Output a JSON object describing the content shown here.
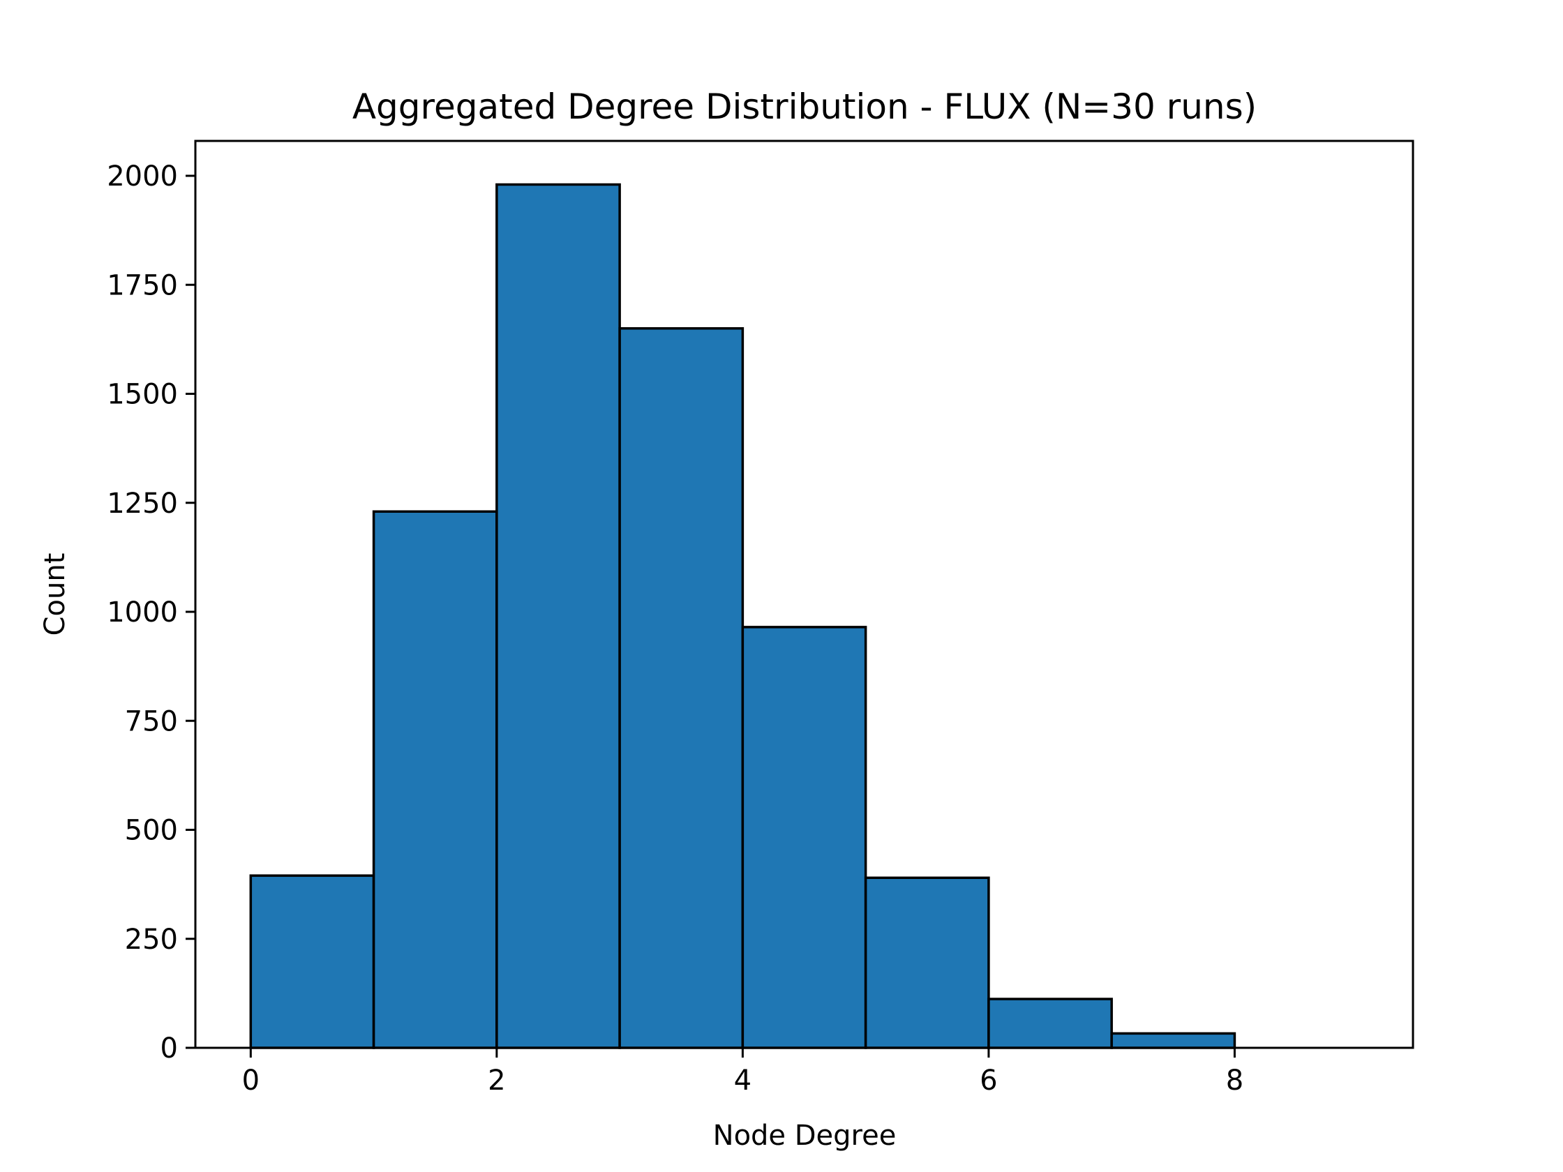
{
  "chart_data": {
    "type": "bar",
    "title": "Aggregated Degree Distribution - FLUX (N=30 runs)",
    "xlabel": "Node Degree",
    "ylabel": "Count",
    "bins": [
      {
        "x0": 0,
        "x1": 1,
        "count": 395
      },
      {
        "x0": 1,
        "x1": 2,
        "count": 1230
      },
      {
        "x0": 2,
        "x1": 3,
        "count": 1980
      },
      {
        "x0": 3,
        "x1": 4,
        "count": 1650
      },
      {
        "x0": 4,
        "x1": 5,
        "count": 965
      },
      {
        "x0": 5,
        "x1": 6,
        "count": 390
      },
      {
        "x0": 6,
        "x1": 7,
        "count": 112
      },
      {
        "x0": 7,
        "x1": 8,
        "count": 33
      }
    ],
    "xlim": [
      -0.45,
      9.45
    ],
    "ylim": [
      0,
      2080
    ],
    "xticks": [
      0,
      2,
      4,
      6,
      8
    ],
    "yticks": [
      0,
      250,
      500,
      750,
      1000,
      1250,
      1500,
      1750,
      2000
    ],
    "grid": false,
    "legend": "none",
    "colors": {
      "bar_fill": "#1f77b4",
      "bar_edge": "#000000",
      "axes": "#000000"
    }
  }
}
